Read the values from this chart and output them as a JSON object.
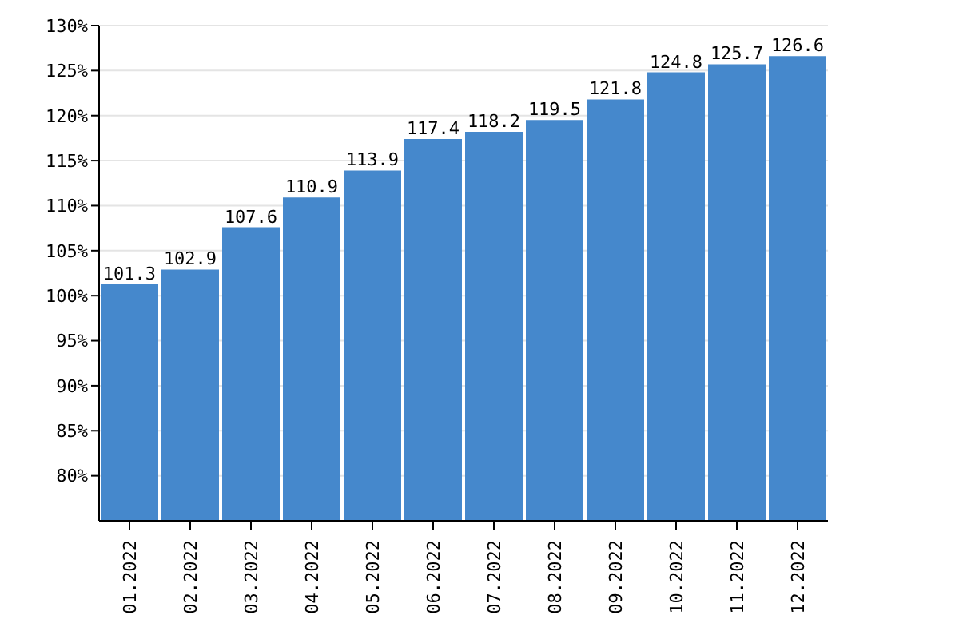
{
  "chart_data": {
    "type": "bar",
    "categories": [
      "01.2022",
      "02.2022",
      "03.2022",
      "04.2022",
      "05.2022",
      "06.2022",
      "07.2022",
      "08.2022",
      "09.2022",
      "10.2022",
      "11.2022",
      "12.2022"
    ],
    "values": [
      101.3,
      102.9,
      107.6,
      110.9,
      113.9,
      117.4,
      118.2,
      119.5,
      121.8,
      124.8,
      125.7,
      126.6
    ],
    "color": "#4588cc",
    "ylim": [
      75,
      130
    ],
    "yticks": [
      {
        "value": 80,
        "label": "80%"
      },
      {
        "value": 85,
        "label": "85%"
      },
      {
        "value": 90,
        "label": "90%"
      },
      {
        "value": 95,
        "label": "95%"
      },
      {
        "value": 100,
        "label": "100%"
      },
      {
        "value": 105,
        "label": "105%"
      },
      {
        "value": 110,
        "label": "110%"
      },
      {
        "value": 115,
        "label": "115%"
      },
      {
        "value": 120,
        "label": "120%"
      },
      {
        "value": 125,
        "label": "125%"
      },
      {
        "value": 130,
        "label": "130%"
      }
    ],
    "grid": "y",
    "data_labels": true
  }
}
